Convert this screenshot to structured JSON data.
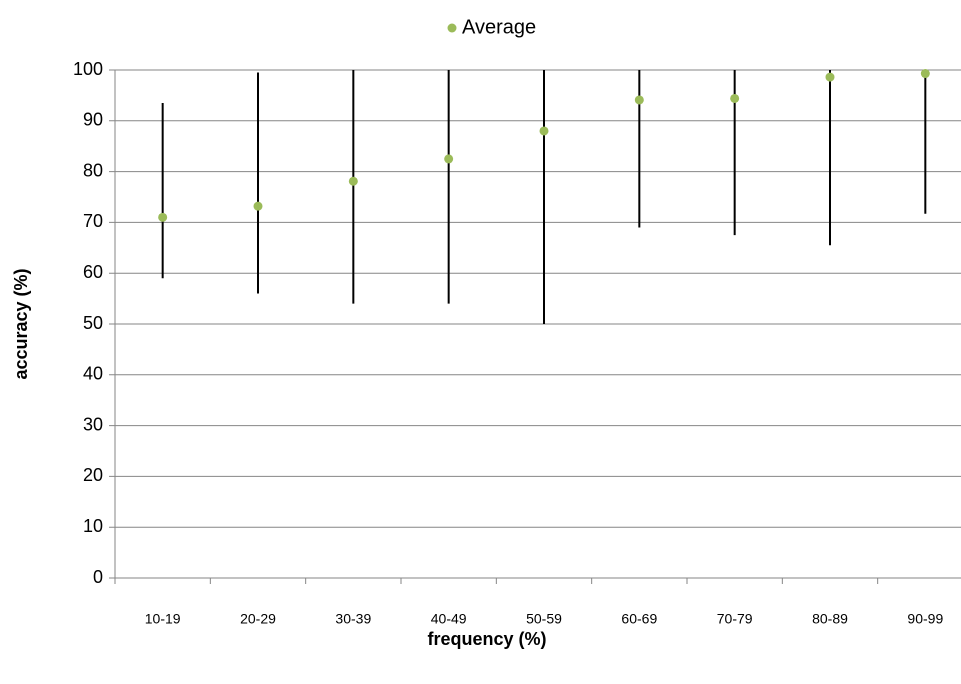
{
  "chart_data": {
    "type": "scatter",
    "x_label": "frequency (%)",
    "y_label": "accuracy (%)",
    "categories": [
      "10-19",
      "20-29",
      "30-39",
      "40-49",
      "50-59",
      "60-69",
      "70-79",
      "80-89",
      "90-99"
    ],
    "series": [
      {
        "name": "Average",
        "color": "#9bbb59",
        "values": [
          71,
          73.2,
          78.1,
          82.5,
          88,
          94.1,
          94.4,
          98.6,
          99.3
        ],
        "error_minus": [
          12,
          17.2,
          24.1,
          28.5,
          38,
          25.1,
          26.9,
          33.1,
          27.6
        ],
        "error_plus": [
          22.5,
          26.3,
          21.9,
          17.5,
          12,
          5.9,
          5.6,
          1.4,
          0.7
        ]
      }
    ],
    "ylim": [
      0,
      100
    ],
    "yticks": [
      0,
      10,
      20,
      30,
      40,
      50,
      60,
      70,
      80,
      90,
      100
    ],
    "grid": true,
    "legend": "top"
  }
}
